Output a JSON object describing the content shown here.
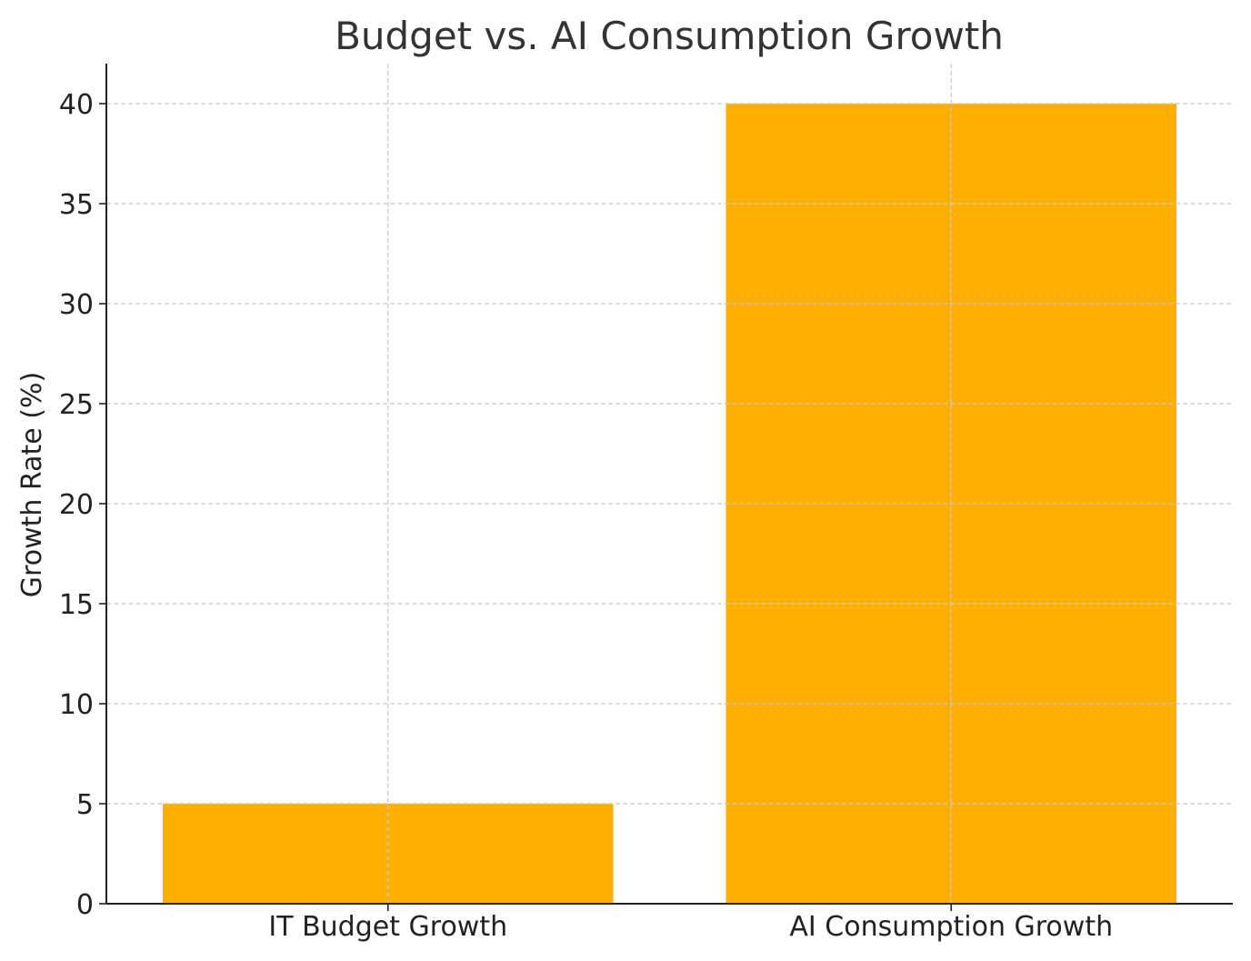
{
  "chart_data": {
    "type": "bar",
    "title": "Budget vs. AI Consumption Growth",
    "xlabel": "",
    "ylabel": "Growth Rate (%)",
    "categories": [
      "IT Budget Growth",
      "AI Consumption Growth"
    ],
    "values": [
      5,
      40
    ],
    "ylim": [
      0,
      42
    ],
    "yticks": [
      0,
      5,
      10,
      15,
      20,
      25,
      30,
      35,
      40
    ],
    "grid": true,
    "bar_color": "#FFAF00",
    "legend": "none"
  }
}
